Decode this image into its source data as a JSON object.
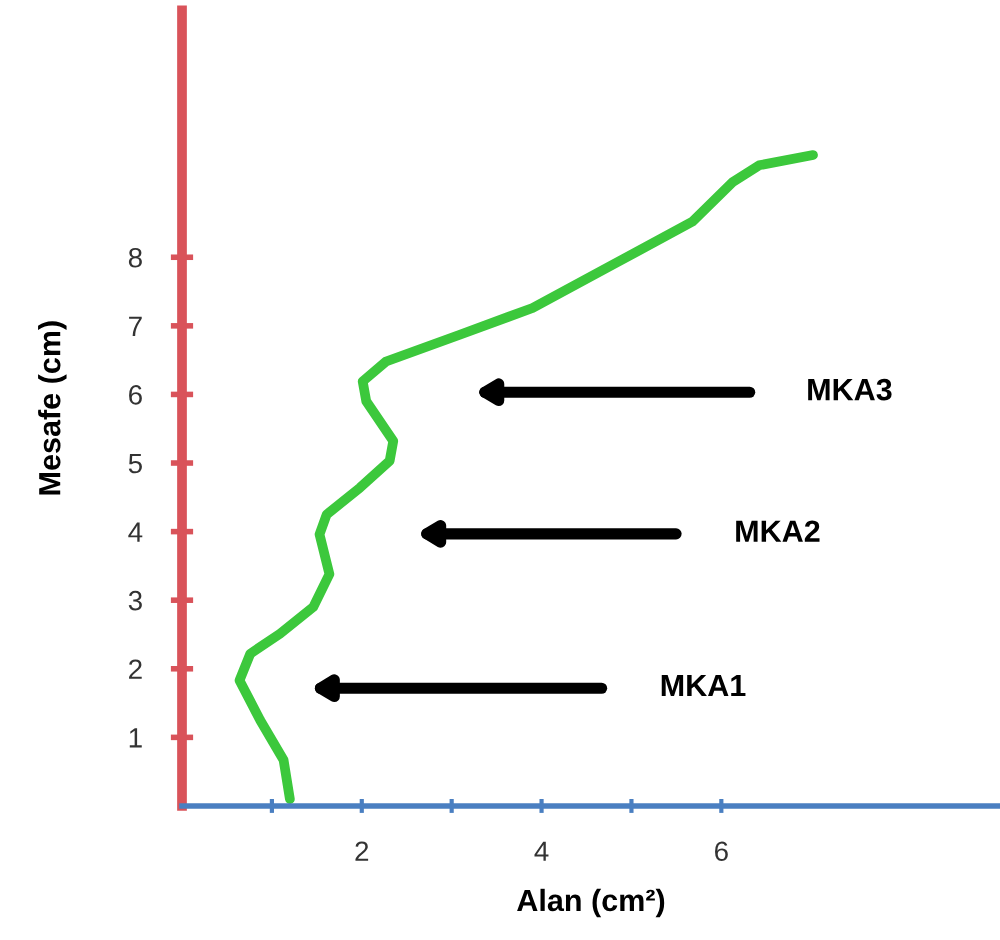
{
  "chart_data": {
    "type": "line",
    "xlabel": "Alan (cm²)",
    "ylabel": "Mesafe (cm)",
    "xlim": [
      0,
      9.1
    ],
    "ylim": [
      0,
      11.6
    ],
    "xticks": [
      {
        "value": 1,
        "label": null
      },
      2,
      {
        "value": 3,
        "label": null
      },
      4,
      {
        "value": 5,
        "label": null
      },
      6
    ],
    "yticks": [
      1,
      2,
      3,
      4,
      5,
      6,
      7,
      8
    ],
    "grid": false,
    "marker": "none",
    "line_style": "solid",
    "series": [
      {
        "color": "#3cc83c",
        "x": [
          1.2,
          1.13,
          0.87,
          0.64,
          0.76,
          1.09,
          1.46,
          1.64,
          1.53,
          1.61,
          1.98,
          2.31,
          2.35,
          2.05,
          2.01,
          2.27,
          3.09,
          3.9,
          4.79,
          5.68,
          6.13,
          6.42,
          7.02
        ],
        "values": [
          0.1,
          0.67,
          1.25,
          1.83,
          2.22,
          2.51,
          2.9,
          3.38,
          3.96,
          4.25,
          4.64,
          5.03,
          5.32,
          5.9,
          6.19,
          6.48,
          6.87,
          7.26,
          7.89,
          8.52,
          9.1,
          9.34,
          9.49
        ]
      }
    ],
    "annotations": [
      "MKA1",
      "MKA2",
      "MKA3"
    ]
  }
}
